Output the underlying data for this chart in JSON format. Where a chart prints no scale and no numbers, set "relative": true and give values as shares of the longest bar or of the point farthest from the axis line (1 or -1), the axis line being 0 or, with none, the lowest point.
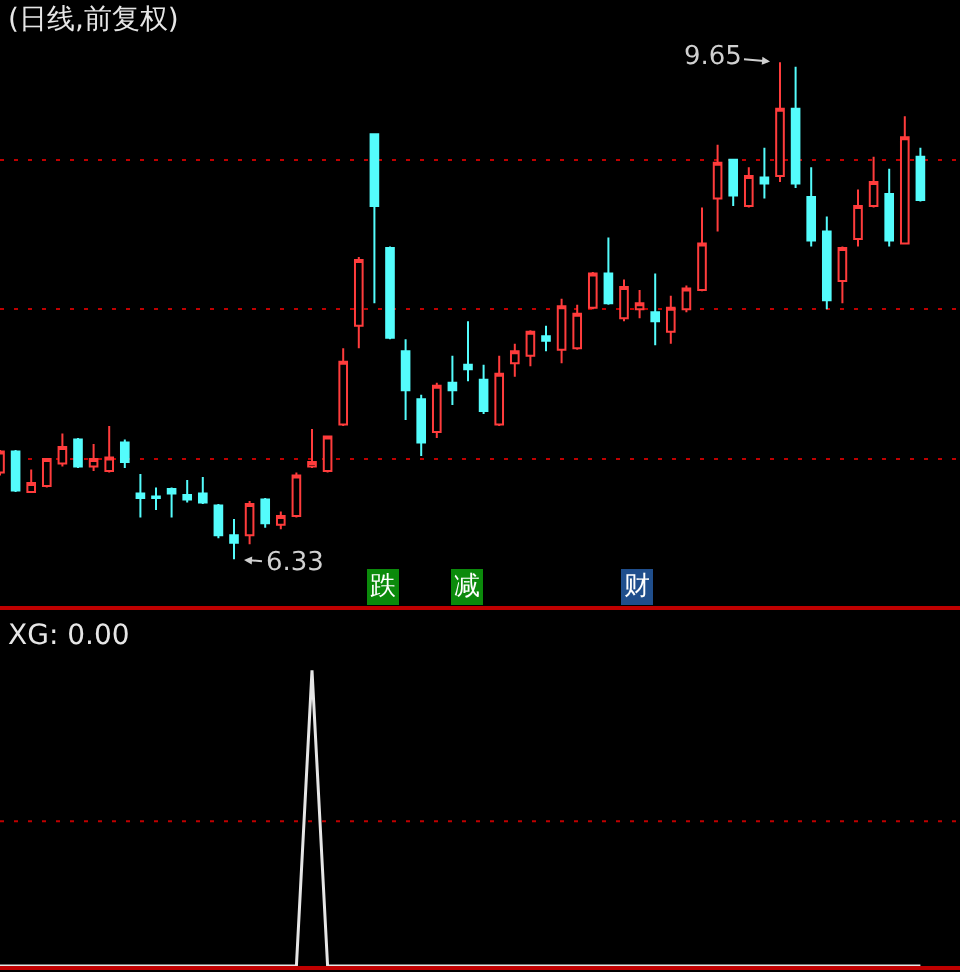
{
  "chart_data": [
    {
      "type": "candlestick",
      "title": "(日线,前复权)",
      "categories": [
        null,
        null,
        null,
        null,
        null,
        null,
        null,
        null,
        null,
        null,
        null,
        null,
        null,
        null,
        null,
        null,
        null,
        null,
        null,
        null,
        null,
        null,
        null,
        null,
        null,
        null,
        null,
        null,
        null,
        null,
        null,
        null,
        null,
        null,
        null,
        null,
        null,
        null,
        null,
        null,
        null,
        null,
        null,
        null,
        null,
        null,
        null,
        null,
        null,
        null,
        null,
        null,
        null,
        null,
        null,
        null,
        null,
        null,
        null,
        null
      ],
      "ohlc": [
        [
          6.91,
          7.06,
          6.89,
          7.05
        ],
        [
          7.05,
          7.06,
          6.78,
          6.79
        ],
        [
          6.78,
          6.93,
          6.78,
          6.84
        ],
        [
          6.82,
          7.0,
          6.81,
          7.0
        ],
        [
          6.97,
          7.17,
          6.95,
          7.08
        ],
        [
          7.13,
          7.14,
          6.94,
          6.95
        ],
        [
          6.95,
          7.1,
          6.92,
          7.0
        ],
        [
          6.92,
          7.22,
          6.91,
          7.01
        ],
        [
          7.11,
          7.13,
          6.94,
          6.98
        ],
        [
          6.77,
          6.9,
          6.61,
          6.74
        ],
        [
          6.75,
          6.81,
          6.66,
          6.74
        ],
        [
          6.8,
          6.81,
          6.61,
          6.77
        ],
        [
          6.76,
          6.86,
          6.71,
          6.73
        ],
        [
          6.77,
          6.88,
          6.7,
          6.71
        ],
        [
          6.69,
          6.7,
          6.47,
          6.49
        ],
        [
          6.49,
          6.6,
          6.33,
          6.44
        ],
        [
          6.49,
          6.72,
          6.43,
          6.7
        ],
        [
          6.73,
          6.74,
          6.54,
          6.57
        ],
        [
          6.56,
          6.65,
          6.53,
          6.62
        ],
        [
          6.62,
          6.91,
          6.61,
          6.89
        ],
        [
          6.95,
          7.2,
          6.94,
          6.98
        ],
        [
          6.92,
          7.15,
          6.91,
          7.15
        ],
        [
          7.23,
          7.74,
          7.22,
          7.65
        ],
        [
          7.89,
          8.35,
          7.74,
          8.33
        ],
        [
          9.17,
          9.17,
          8.04,
          8.69
        ],
        [
          8.41,
          8.42,
          7.8,
          7.81
        ],
        [
          7.72,
          7.8,
          7.26,
          7.46
        ],
        [
          7.4,
          7.43,
          7.02,
          7.11
        ],
        [
          7.18,
          7.51,
          7.14,
          7.49
        ],
        [
          7.51,
          7.69,
          7.36,
          7.46
        ],
        [
          7.63,
          7.92,
          7.52,
          7.6
        ],
        [
          7.53,
          7.63,
          7.3,
          7.32
        ],
        [
          7.23,
          7.69,
          7.22,
          7.57
        ],
        [
          7.64,
          7.77,
          7.55,
          7.72
        ],
        [
          7.69,
          7.86,
          7.62,
          7.85
        ],
        [
          7.82,
          7.89,
          7.72,
          7.79
        ],
        [
          7.73,
          8.07,
          7.64,
          8.02
        ],
        [
          7.74,
          8.03,
          7.73,
          7.97
        ],
        [
          8.01,
          8.25,
          8.0,
          8.24
        ],
        [
          8.24,
          8.48,
          8.03,
          8.04
        ],
        [
          7.94,
          8.2,
          7.92,
          8.15
        ],
        [
          8.0,
          8.13,
          7.94,
          8.04
        ],
        [
          7.98,
          8.24,
          7.76,
          7.92
        ],
        [
          7.85,
          8.09,
          7.77,
          8.01
        ],
        [
          8.0,
          8.16,
          7.98,
          8.14
        ],
        [
          8.13,
          8.68,
          8.12,
          8.44
        ],
        [
          8.74,
          9.1,
          8.52,
          8.98
        ],
        [
          9.0,
          9.0,
          8.69,
          8.76
        ],
        [
          8.69,
          8.95,
          8.68,
          8.89
        ],
        [
          8.88,
          9.08,
          8.74,
          8.84
        ],
        [
          8.89,
          9.65,
          8.85,
          9.34
        ],
        [
          9.34,
          9.62,
          8.81,
          8.84
        ],
        [
          8.75,
          8.95,
          8.42,
          8.46
        ],
        [
          8.52,
          8.62,
          8.0,
          8.06
        ],
        [
          8.19,
          8.42,
          8.04,
          8.41
        ],
        [
          8.47,
          8.8,
          8.42,
          8.69
        ],
        [
          8.69,
          9.02,
          8.68,
          8.85
        ],
        [
          8.77,
          8.94,
          8.42,
          8.46
        ],
        [
          8.44,
          9.29,
          8.44,
          9.15
        ],
        [
          9.02,
          9.08,
          8.72,
          8.73
        ]
      ],
      "colors": [
        "#ff3c3c",
        "#54fcfc",
        "#ff3c3c",
        "#ff3c3c",
        "#ff3c3c",
        "#54fcfc",
        "#ff3c3c",
        "#ff3c3c",
        "#54fcfc",
        "#54fcfc",
        "#54fcfc",
        "#54fcfc",
        "#54fcfc",
        "#54fcfc",
        "#54fcfc",
        "#54fcfc",
        "#ff3c3c",
        "#54fcfc",
        "#ff3c3c",
        "#ff3c3c",
        "#ff3c3c",
        "#ff3c3c",
        "#ff3c3c",
        "#ff3c3c",
        "#54fcfc",
        "#54fcfc",
        "#54fcfc",
        "#54fcfc",
        "#ff3c3c",
        "#54fcfc",
        "#54fcfc",
        "#54fcfc",
        "#ff3c3c",
        "#ff3c3c",
        "#ff3c3c",
        "#54fcfc",
        "#ff3c3c",
        "#ff3c3c",
        "#ff3c3c",
        "#54fcfc",
        "#ff3c3c",
        "#ff3c3c",
        "#54fcfc",
        "#ff3c3c",
        "#ff3c3c",
        "#ff3c3c",
        "#ff3c3c",
        "#54fcfc",
        "#ff3c3c",
        "#54fcfc",
        "#ff3c3c",
        "#54fcfc",
        "#54fcfc",
        "#54fcfc",
        "#ff3c3c",
        "#ff3c3c",
        "#ff3c3c",
        "#54fcfc",
        "#ff3c3c",
        "#54fcfc"
      ],
      "yticks": [
        {
          "value": 7,
          "label": null
        },
        {
          "value": 8,
          "label": null
        },
        {
          "value": 9,
          "label": null
        }
      ],
      "grid": "y",
      "tick_labels": false,
      "annotations": [
        "9.65",
        "6.33",
        "跌",
        "减",
        "财"
      ]
    },
    {
      "type": "line",
      "title": "XG: 0.00",
      "relative": true,
      "tick_labels": false,
      "categories": [
        null,
        null,
        null,
        null,
        null,
        null,
        null,
        null,
        null,
        null,
        null,
        null,
        null,
        null,
        null,
        null,
        null,
        null,
        null,
        null,
        null,
        null,
        null,
        null,
        null,
        null,
        null,
        null,
        null,
        null,
        null,
        null,
        null,
        null,
        null,
        null,
        null,
        null,
        null,
        null,
        null,
        null,
        null,
        null,
        null,
        null,
        null,
        null,
        null,
        null,
        null,
        null,
        null,
        null,
        null,
        null,
        null,
        null,
        null,
        null
      ],
      "series": [
        {
          "color": "#e6e6e6",
          "values": [
            0,
            0,
            0,
            0,
            0,
            0,
            0,
            0,
            0,
            0,
            0,
            0,
            0,
            0,
            0,
            0,
            0,
            0,
            0,
            0,
            1,
            0,
            0,
            0,
            0,
            0,
            0,
            0,
            0,
            0,
            0,
            0,
            0,
            0,
            0,
            0,
            0,
            0,
            0,
            0,
            0,
            0,
            0,
            0,
            0,
            0,
            0,
            0,
            0,
            0,
            0,
            0,
            0,
            0,
            0,
            0,
            0,
            0,
            0,
            0
          ]
        }
      ],
      "ref_lines": [
        {
          "axis": "y",
          "value": 0.49,
          "color": "#c00000",
          "line_style": "dotted"
        }
      ]
    }
  ]
}
